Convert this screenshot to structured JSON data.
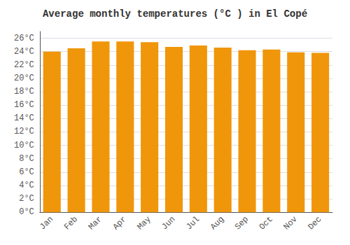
{
  "chart_data": {
    "type": "bar",
    "title": "Average monthly temperatures (°C ) in El Copé",
    "categories": [
      "Jan",
      "Feb",
      "Mar",
      "Apr",
      "May",
      "Jun",
      "Jul",
      "Aug",
      "Sep",
      "Oct",
      "Nov",
      "Dec"
    ],
    "values": [
      24.0,
      24.5,
      25.5,
      25.5,
      25.4,
      24.7,
      24.9,
      24.6,
      24.2,
      24.3,
      23.9,
      23.8
    ],
    "color": "#F0960A",
    "ylim": [
      0,
      27
    ],
    "yticks": [
      {
        "value": 0,
        "label": "0°C"
      },
      {
        "value": 2,
        "label": "2°C"
      },
      {
        "value": 4,
        "label": "4°C"
      },
      {
        "value": 6,
        "label": "6°C"
      },
      {
        "value": 8,
        "label": "8°C"
      },
      {
        "value": 10,
        "label": "10°C"
      },
      {
        "value": 12,
        "label": "12°C"
      },
      {
        "value": 14,
        "label": "14°C"
      },
      {
        "value": 16,
        "label": "16°C"
      },
      {
        "value": 18,
        "label": "18°C"
      },
      {
        "value": 20,
        "label": "20°C"
      },
      {
        "value": 22,
        "label": "22°C"
      },
      {
        "value": 24,
        "label": "24°C"
      },
      {
        "value": 26,
        "label": "26°C"
      }
    ],
    "grid": true
  }
}
